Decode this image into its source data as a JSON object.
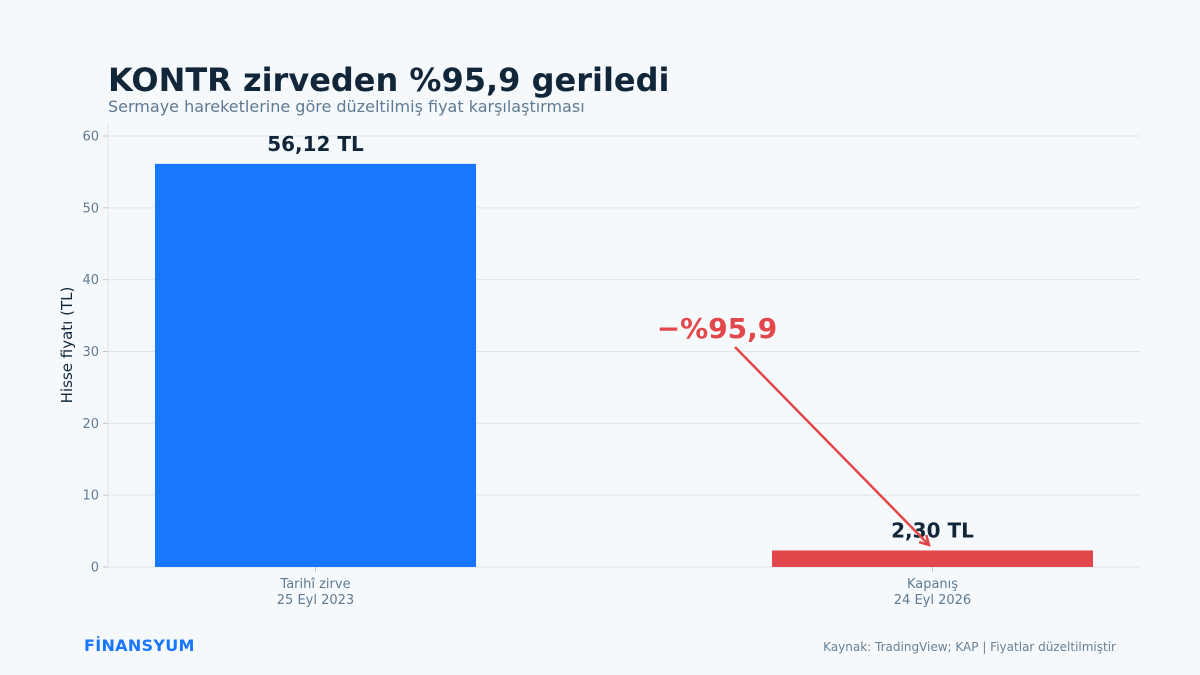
{
  "header": {
    "title": "KONTR zirveden %95,9 geriledi",
    "subtitle": "Sermaye hareketlerine göre düzeltilmiş fiyat karşılaştırması"
  },
  "footer": {
    "brand": "FİNANSYUM",
    "source": "Kaynak: TradingView; KAP | Fiyatlar düzeltilmiştir"
  },
  "colors": {
    "peak_bar": "#1877ff",
    "close_bar": "#e2474b",
    "annotation": "#e2474b",
    "grid": "#dde6ee",
    "background": "#f5f9fc"
  },
  "chart_data": {
    "type": "bar",
    "title": "KONTR zirveden %95,9 geriledi",
    "subtitle": "Sermaye hareketlerine göre düzeltilmiş fiyat karşılaştırması",
    "xlabel": "",
    "ylabel": "Hisse fiyatı (TL)",
    "ylim": [
      0,
      62
    ],
    "yticks": [
      0,
      10,
      20,
      30,
      40,
      50,
      60
    ],
    "grid": true,
    "categories": [
      [
        "Tarihî zirve",
        "25 Eyl 2023"
      ],
      [
        "Kapanış",
        "24 Eyl 2026"
      ]
    ],
    "values": [
      56.12,
      2.3
    ],
    "data_labels": [
      "56,12 TL",
      "2,30 TL"
    ],
    "bar_colors": [
      "#1877ff",
      "#e2474b"
    ],
    "annotation": {
      "text": "−%95,9",
      "color": "#e2474b",
      "arrow": "from text to second bar"
    }
  }
}
